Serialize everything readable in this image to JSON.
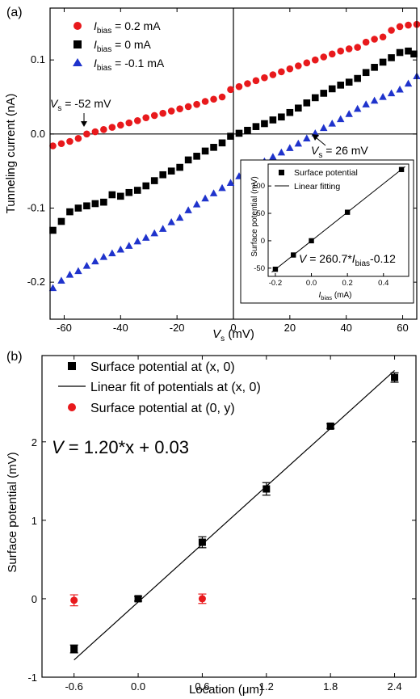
{
  "chart_data": [
    {
      "panel_label": "(a)",
      "type": "scatter",
      "xlabel_main": "V",
      "xlabel_sub": "s",
      "xlabel_unit": " (mV)",
      "ylabel": "Tunneling current (nA)",
      "xlim": [
        -65,
        65
      ],
      "ylim": [
        -0.25,
        0.17
      ],
      "xticks": [
        -60,
        -40,
        -20,
        0,
        20,
        40,
        60
      ],
      "yticks": [
        -0.2,
        -0.1,
        0.0,
        0.1
      ],
      "ytick_labels": [
        "-0.2",
        "-0.1",
        "0.0",
        "0.1"
      ],
      "series": [
        {
          "legend_main": "I",
          "legend_sub": "bias",
          "legend_rest": " = 0.2 mA",
          "marker": "circle",
          "color": "#e8191c",
          "x": [
            -64,
            -61,
            -58,
            -55,
            -52,
            -49,
            -46,
            -43,
            -40,
            -37,
            -34,
            -31,
            -28,
            -25,
            -22,
            -19,
            -16,
            -13,
            -10,
            -7,
            -4,
            -1,
            2,
            5,
            8,
            11,
            14,
            17,
            20,
            23,
            26,
            29,
            32,
            35,
            38,
            41,
            44,
            47,
            50,
            53,
            56,
            59,
            62,
            65
          ],
          "y": [
            -0.016,
            -0.013,
            -0.01,
            -0.006,
            0.0,
            0.003,
            0.006,
            0.009,
            0.012,
            0.015,
            0.018,
            0.022,
            0.025,
            0.028,
            0.031,
            0.034,
            0.037,
            0.04,
            0.044,
            0.047,
            0.05,
            0.06,
            0.064,
            0.068,
            0.072,
            0.076,
            0.08,
            0.084,
            0.088,
            0.092,
            0.096,
            0.1,
            0.104,
            0.108,
            0.112,
            0.115,
            0.117,
            0.124,
            0.128,
            0.131,
            0.14,
            0.145,
            0.147,
            0.148
          ]
        },
        {
          "legend_main": "I",
          "legend_sub": "bias",
          "legend_rest": " = 0 mA",
          "marker": "square",
          "color": "#000000",
          "x": [
            -64,
            -61,
            -58,
            -55,
            -52,
            -49,
            -46,
            -43,
            -40,
            -37,
            -34,
            -31,
            -28,
            -25,
            -22,
            -19,
            -16,
            -13,
            -10,
            -7,
            -4,
            -1,
            2,
            5,
            8,
            11,
            14,
            17,
            20,
            23,
            26,
            29,
            32,
            35,
            38,
            41,
            44,
            47,
            50,
            53,
            56,
            59,
            62,
            64
          ],
          "y": [
            -0.13,
            -0.118,
            -0.105,
            -0.1,
            -0.097,
            -0.094,
            -0.092,
            -0.082,
            -0.084,
            -0.079,
            -0.076,
            -0.07,
            -0.063,
            -0.055,
            -0.05,
            -0.045,
            -0.035,
            -0.03,
            -0.023,
            -0.018,
            -0.012,
            -0.003,
            0.001,
            0.005,
            0.01,
            0.014,
            0.019,
            0.023,
            0.029,
            0.035,
            0.042,
            0.049,
            0.055,
            0.061,
            0.066,
            0.07,
            0.075,
            0.083,
            0.09,
            0.097,
            0.103,
            0.11,
            0.112,
            0.108
          ]
        },
        {
          "legend_main": "I",
          "legend_sub": "bias",
          "legend_rest": " = -0.1 mA",
          "marker": "triangle",
          "color": "#1f33cc",
          "x": [
            -64,
            -61,
            -58,
            -55,
            -52,
            -49,
            -46,
            -43,
            -40,
            -37,
            -34,
            -31,
            -28,
            -25,
            -22,
            -19,
            -16,
            -13,
            -10,
            -7,
            -4,
            -1,
            2,
            5,
            8,
            11,
            14,
            17,
            20,
            23,
            26,
            29,
            32,
            35,
            38,
            41,
            44,
            47,
            50,
            53,
            56,
            59,
            62,
            65
          ],
          "y": [
            -0.208,
            -0.198,
            -0.19,
            -0.185,
            -0.178,
            -0.172,
            -0.166,
            -0.161,
            -0.156,
            -0.151,
            -0.145,
            -0.14,
            -0.134,
            -0.128,
            -0.119,
            -0.113,
            -0.103,
            -0.095,
            -0.087,
            -0.08,
            -0.073,
            -0.066,
            -0.057,
            -0.05,
            -0.043,
            -0.037,
            -0.031,
            -0.025,
            -0.019,
            -0.013,
            -0.006,
            0.001,
            0.008,
            0.014,
            0.02,
            0.027,
            0.034,
            0.04,
            0.045,
            0.05,
            0.055,
            0.06,
            0.068,
            0.078
          ]
        }
      ],
      "annotations": [
        {
          "main": "V",
          "sub": "s",
          "rest": " = -52 mV"
        },
        {
          "main": "V",
          "sub": "s",
          "rest": " = 26 mV"
        }
      ],
      "inset": {
        "type": "scatter",
        "xlabel_main": "I",
        "xlabel_sub": "bias",
        "xlabel_unit": " (mA)",
        "ylabel": "Surface potential (mV)",
        "xlim": [
          -0.24,
          0.54
        ],
        "ylim": [
          -65,
          140
        ],
        "xticks": [
          -0.2,
          0.0,
          0.2,
          0.4
        ],
        "xtick_labels": [
          "-0.2",
          "0.0",
          "0.2",
          "0.4"
        ],
        "yticks": [
          -50,
          0,
          50,
          100
        ],
        "points_legend": "Surface potential",
        "fit_legend": "Linear fitting",
        "equation_main": "V",
        "equation_mid": " = 260.7*",
        "equation_var": "I",
        "equation_sub": "bias",
        "equation_end": "-0.12",
        "x": [
          -0.2,
          -0.1,
          0.0,
          0.2,
          0.5
        ],
        "y": [
          -52,
          -26,
          0,
          52,
          130
        ],
        "fit_slope": 260.7,
        "fit_intercept": -0.12
      }
    },
    {
      "panel_label": "(b)",
      "type": "scatter",
      "xlabel": "Location (μm)",
      "ylabel": "Surface potential (mV)",
      "xlim": [
        -0.9,
        2.6
      ],
      "ylim": [
        -1.0,
        3.1
      ],
      "xticks": [
        -0.6,
        0.0,
        0.6,
        1.2,
        1.8,
        2.4
      ],
      "xtick_labels": [
        "-0.6",
        "0.0",
        "0.6",
        "1.2",
        "1.8",
        "2.4"
      ],
      "yticks": [
        -1,
        0,
        1,
        2
      ],
      "series": [
        {
          "name": "Surface potential at (x, 0)",
          "marker": "square",
          "color": "#000000",
          "x": [
            -0.6,
            0.0,
            0.6,
            1.2,
            1.8,
            2.4
          ],
          "y": [
            -0.64,
            0.0,
            0.72,
            1.4,
            2.2,
            2.82
          ],
          "err": [
            0.05,
            0.03,
            0.07,
            0.08,
            0.03,
            0.06
          ]
        },
        {
          "name": "Surface potential at (0, y)",
          "marker": "circle",
          "color": "#e8191c",
          "x": [
            -0.6,
            0.6
          ],
          "y": [
            -0.02,
            0.0
          ],
          "err": [
            0.07,
            0.06
          ]
        }
      ],
      "fit_legend": "Linear fit of potentials at (x, 0)",
      "fit_slope": 1.2,
      "fit_intercept": 0.03,
      "equation_main": "V",
      "equation_rest": " = 1.20*x + 0.03"
    }
  ]
}
